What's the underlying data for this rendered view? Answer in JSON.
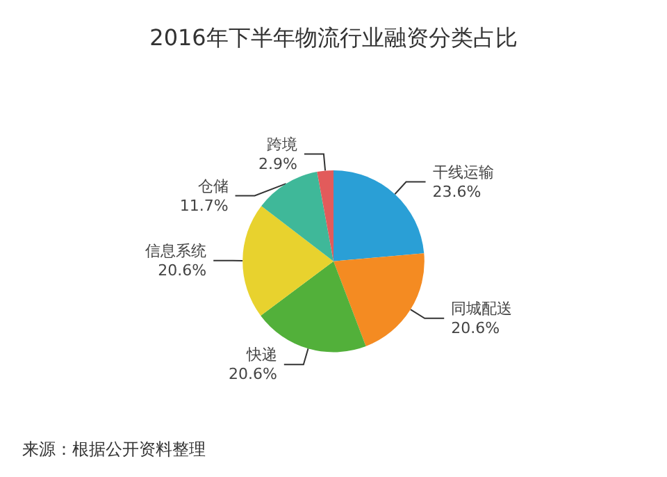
{
  "chart_data": {
    "type": "pie",
    "title": "2016年下半年物流行业融资分类占比",
    "categories": [
      "干线运输",
      "同城配送",
      "快递",
      "信息系统",
      "仓储",
      "跨境"
    ],
    "values": [
      23.6,
      20.6,
      20.6,
      20.6,
      11.7,
      2.9
    ],
    "colors": [
      "#2a9fd6",
      "#f48b22",
      "#52b03a",
      "#e8d22e",
      "#3fb899",
      "#e25b5b"
    ],
    "value_labels": [
      "23.6%",
      "20.6%",
      "20.6%",
      "20.6%",
      "11.7%",
      "2.9%"
    ],
    "annotations": [
      "来源：根据公开资料整理"
    ]
  }
}
